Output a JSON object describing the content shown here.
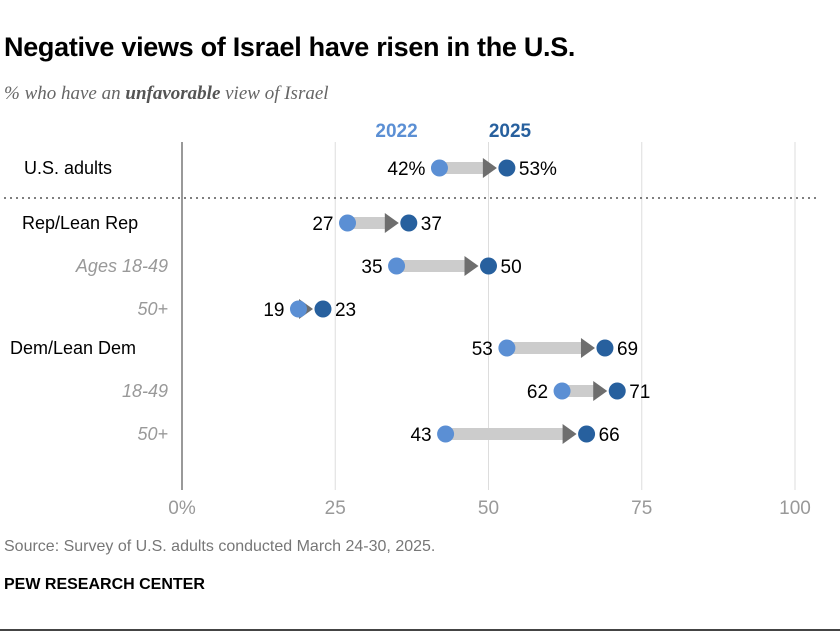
{
  "title": "Negative views of Israel have risen in the U.S.",
  "subtitle_pre": "% who have an ",
  "subtitle_bold": "unfavorable",
  "subtitle_post": " view of Israel",
  "source": "Source: Survey of U.S. adults conducted March 24-30, 2025.",
  "brand": "PEW RESEARCH CENTER",
  "colors": {
    "y2022": "#5b8fd4",
    "y2025": "#27609e",
    "arrow": "#cccccc",
    "arrowhead": "#6e6e6e"
  },
  "chart_data": {
    "type": "dot-arrow",
    "series": [
      {
        "name": "2022"
      },
      {
        "name": "2025"
      }
    ],
    "xlim": [
      0,
      100
    ],
    "ticks": [
      "0%",
      "25",
      "50",
      "75",
      "100"
    ],
    "grid": true,
    "rows": [
      {
        "label": "U.S. adults",
        "style": "main",
        "v2022": 42,
        "v2025": 53,
        "l2022": "42%",
        "l2025": "53%"
      },
      {
        "label": "Rep/Lean Rep",
        "style": "main",
        "v2022": 27,
        "v2025": 37,
        "l2022": "27",
        "l2025": "37"
      },
      {
        "label": "Ages 18-49",
        "style": "sub",
        "v2022": 35,
        "v2025": 50,
        "l2022": "35",
        "l2025": "50"
      },
      {
        "label": "50+",
        "style": "sub",
        "v2022": 19,
        "v2025": 23,
        "l2022": "19",
        "l2025": "23"
      },
      {
        "label": "Dem/Lean Dem",
        "style": "main",
        "v2022": 53,
        "v2025": 69,
        "l2022": "53",
        "l2025": "69"
      },
      {
        "label": "18-49",
        "style": "sub",
        "v2022": 62,
        "v2025": 71,
        "l2022": "62",
        "l2025": "71"
      },
      {
        "label": "50+",
        "style": "sub",
        "v2022": 43,
        "v2025": 66,
        "l2022": "43",
        "l2025": "66"
      }
    ]
  }
}
